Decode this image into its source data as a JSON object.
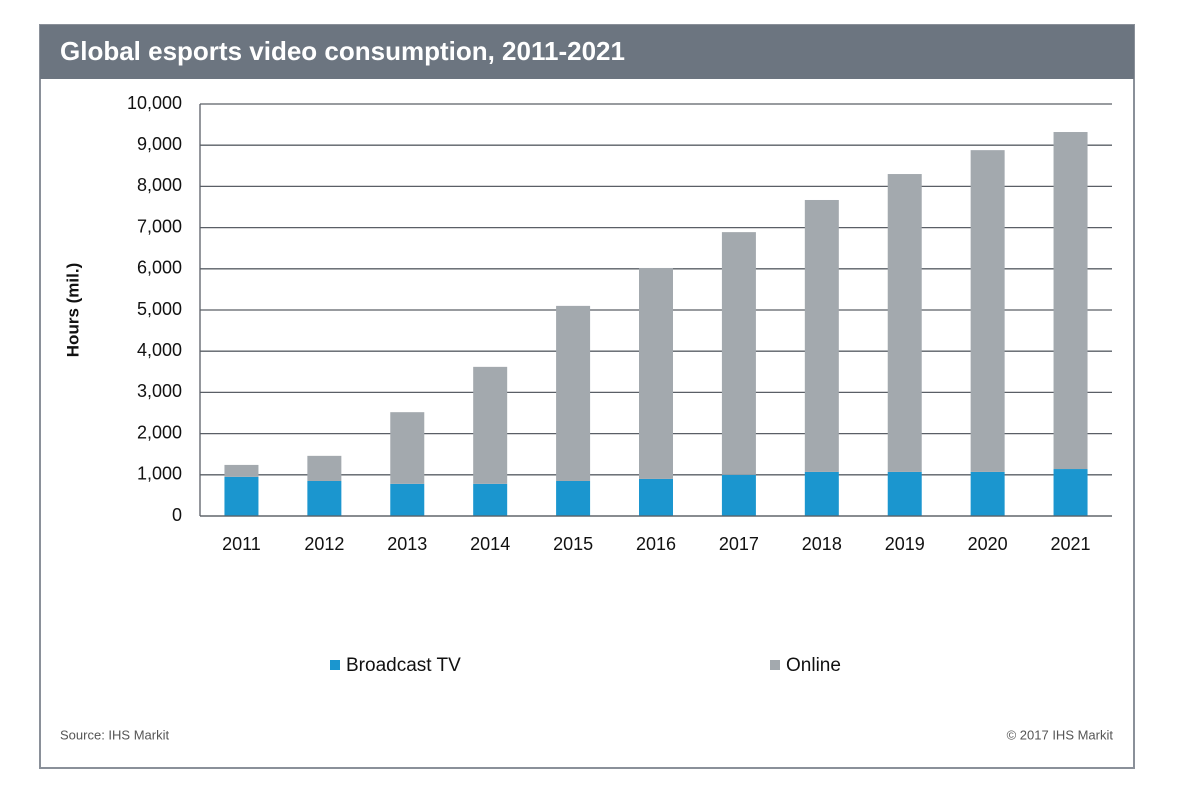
{
  "chart_data": {
    "type": "stacked_bar",
    "title": "Global esports video consumption, 2011-2021",
    "y_label": "Hours (mil.)",
    "categories": [
      "2011",
      "2012",
      "2013",
      "2014",
      "2015",
      "2016",
      "2017",
      "2018",
      "2019",
      "2020",
      "2021"
    ],
    "series": [
      {
        "name": "Broadcast TV",
        "color": "#1b96cf",
        "values": [
          950,
          850,
          780,
          780,
          850,
          900,
          1000,
          1070,
          1070,
          1070,
          1140
        ]
      },
      {
        "name": "Online",
        "color": "#a3a9ae",
        "values": [
          290,
          610,
          1740,
          2840,
          4250,
          5120,
          5890,
          6600,
          7230,
          7810,
          8180
        ]
      }
    ],
    "ylim": [
      0,
      10000
    ],
    "yticks": [
      0,
      {
        "value": 1000,
        "label": "1,000"
      },
      {
        "value": 2000,
        "label": "2,000"
      },
      {
        "value": 3000,
        "label": "3,000"
      },
      {
        "value": 4000,
        "label": "4,000"
      },
      {
        "value": 5000,
        "label": "5,000"
      },
      {
        "value": 6000,
        "label": "6,000"
      },
      {
        "value": 7000,
        "label": "7,000"
      },
      {
        "value": 8000,
        "label": "8,000"
      },
      {
        "value": 9000,
        "label": "9,000"
      },
      {
        "value": 10000,
        "label": "10,000"
      }
    ],
    "grid": true,
    "legend": "bottom",
    "source": "Source: IHS Markit",
    "copyright": "© 2017 IHS Markit"
  }
}
